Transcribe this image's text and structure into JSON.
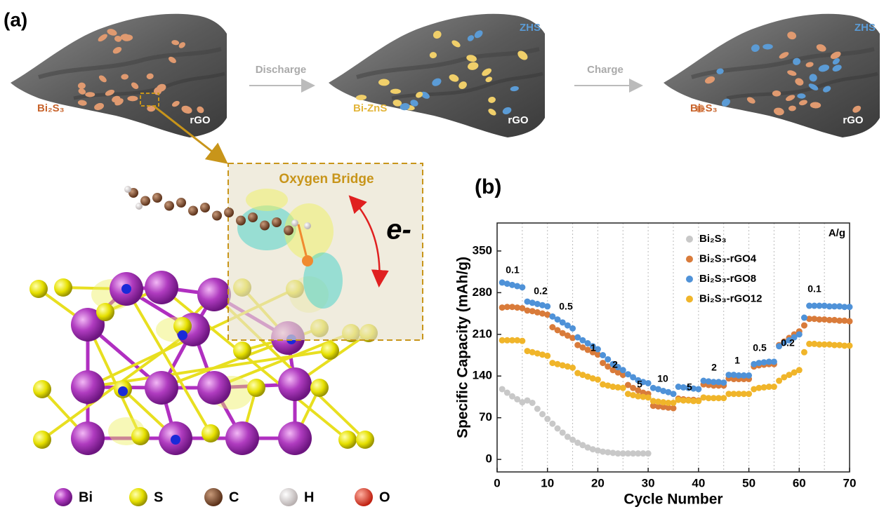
{
  "panel_a": {
    "label": "(a)",
    "steps": [
      "Discharge",
      "Charge"
    ],
    "states": [
      {
        "particle": "Bi₂S₃",
        "support": "rGO"
      },
      {
        "particle": "Bi-ZnS",
        "support": "rGO",
        "product": "ZHS"
      },
      {
        "particle": "Bi₂S₃",
        "support": "rGO",
        "product": "ZHS"
      }
    ],
    "inset": {
      "title": "Oxygen Bridge",
      "carrier": "e-"
    },
    "atoms": [
      "Bi",
      "S",
      "C",
      "H",
      "O"
    ]
  },
  "panel_b": {
    "label": "(b)"
  },
  "chart_data": {
    "type": "scatter",
    "xlabel": "Cycle Number",
    "ylabel": "Specific Capacity (mAh/g)",
    "unit_label": "A/g",
    "annotations": [
      "0.1",
      "0.2",
      "0.5",
      "1",
      "2",
      "5",
      "10",
      "5",
      "2",
      "1",
      "0.5",
      "0.2",
      "0.1"
    ],
    "xlim": [
      0,
      70
    ],
    "xticks": [
      0,
      10,
      20,
      30,
      40,
      50,
      60,
      70
    ],
    "ylim": [
      -21,
      397
    ],
    "yticks": [
      0,
      70,
      140,
      210,
      280,
      350
    ],
    "x": [
      1,
      2,
      3,
      4,
      5,
      6,
      7,
      8,
      9,
      10,
      11,
      12,
      13,
      14,
      15,
      16,
      17,
      18,
      19,
      20,
      21,
      22,
      23,
      24,
      25,
      26,
      27,
      28,
      29,
      30,
      31,
      32,
      33,
      34,
      35,
      36,
      37,
      38,
      39,
      40,
      41,
      42,
      43,
      44,
      45,
      46,
      47,
      48,
      49,
      50,
      51,
      52,
      53,
      54,
      55,
      56,
      57,
      58,
      59,
      60,
      61,
      62,
      63,
      64,
      65,
      66,
      67,
      68,
      69,
      70
    ],
    "series": [
      {
        "name": "Bi₂S₃",
        "color": "#c8c8c8",
        "values": [
          118,
          112,
          106,
          101,
          96,
          99,
          95,
          85,
          76,
          68,
          60,
          52,
          45,
          38,
          33,
          28,
          24,
          20,
          17,
          15,
          13,
          12,
          11,
          10,
          10,
          10,
          10,
          10,
          10,
          10,
          null,
          null,
          null,
          null,
          null,
          null,
          null,
          null,
          null,
          null,
          null,
          null,
          null,
          null,
          null,
          null,
          null,
          null,
          null,
          null,
          null,
          null,
          null,
          null,
          null,
          null,
          null,
          null,
          null,
          null,
          null,
          null,
          null,
          null,
          null,
          null,
          null,
          null,
          null,
          null
        ]
      },
      {
        "name": "Bi₂S₃-rGO4",
        "color": "#d97b3a",
        "values": [
          255,
          256,
          256,
          255,
          254,
          250,
          249,
          247,
          245,
          243,
          222,
          217,
          212,
          208,
          204,
          192,
          188,
          184,
          180,
          176,
          162,
          156,
          150,
          146,
          142,
          125,
          120,
          116,
          112,
          110,
          90,
          89,
          88,
          87,
          86,
          102,
          101,
          100,
          100,
          99,
          126,
          125,
          124,
          124,
          124,
          136,
          135,
          135,
          135,
          135,
          156,
          158,
          159,
          160,
          160,
          192,
          198,
          204,
          210,
          215,
          225,
          236,
          236,
          235,
          235,
          234,
          234,
          233,
          233,
          232
        ]
      },
      {
        "name": "Bi₂S₃-rGO8",
        "color": "#4f92d8",
        "values": [
          297,
          295,
          293,
          291,
          289,
          265,
          263,
          261,
          259,
          257,
          240,
          235,
          230,
          225,
          220,
          205,
          200,
          195,
          190,
          185,
          175,
          168,
          160,
          155,
          150,
          143,
          138,
          133,
          130,
          128,
          120,
          118,
          115,
          113,
          110,
          122,
          121,
          120,
          119,
          118,
          132,
          131,
          130,
          130,
          129,
          142,
          142,
          141,
          141,
          141,
          160,
          162,
          163,
          164,
          164,
          190,
          196,
          200,
          205,
          210,
          238,
          258,
          258,
          258,
          258,
          257,
          257,
          257,
          256,
          256
        ]
      },
      {
        "name": "Bi₂S₃-rGO12",
        "color": "#f0b52a",
        "values": [
          200,
          200,
          200,
          200,
          199,
          182,
          180,
          178,
          176,
          174,
          162,
          160,
          158,
          156,
          154,
          145,
          142,
          139,
          136,
          134,
          126,
          124,
          122,
          121,
          120,
          110,
          108,
          106,
          105,
          104,
          98,
          97,
          96,
          95,
          95,
          100,
          99,
          99,
          98,
          98,
          104,
          103,
          103,
          103,
          103,
          110,
          110,
          110,
          110,
          110,
          118,
          120,
          121,
          122,
          122,
          132,
          138,
          142,
          146,
          150,
          180,
          194,
          194,
          193,
          193,
          193,
          192,
          192,
          191,
          191
        ]
      }
    ]
  }
}
